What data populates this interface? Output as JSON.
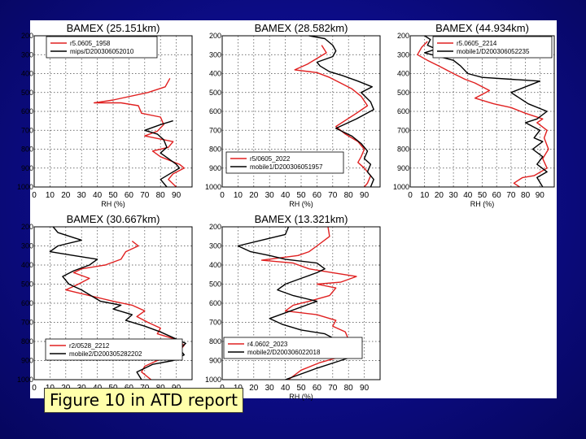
{
  "caption": "Figure 10 in ATD report",
  "colors": {
    "background": "#0c0c85",
    "panel": "#ffffff",
    "caption_bg": "#ffffaa",
    "series_red": "#e02020",
    "series_black": "#000000"
  },
  "chart_data": [
    {
      "type": "line",
      "title": "BAMEX (25.151km)",
      "xlabel": "RH (%)",
      "xticks": [
        0,
        10,
        20,
        30,
        40,
        50,
        60,
        70,
        80,
        90
      ],
      "yticks": [
        200,
        300,
        400,
        500,
        600,
        700,
        800,
        900,
        1000
      ],
      "xlim": [
        0,
        100
      ],
      "ylim": [
        1000,
        200
      ],
      "grid": true,
      "legend_position": "top",
      "series": [
        {
          "name": "r5.0605_1958",
          "color": "red",
          "points": [
            [
              86,
              425
            ],
            [
              83,
              470
            ],
            [
              72,
              500
            ],
            [
              50,
              540
            ],
            [
              38,
              555
            ],
            [
              55,
              555
            ],
            [
              66,
              570
            ],
            [
              68,
              610
            ],
            [
              80,
              630
            ],
            [
              82,
              670
            ],
            [
              78,
              705
            ],
            [
              70,
              730
            ],
            [
              88,
              760
            ],
            [
              85,
              790
            ],
            [
              75,
              810
            ],
            [
              80,
              840
            ],
            [
              92,
              880
            ],
            [
              95,
              900
            ],
            [
              88,
              930
            ],
            [
              85,
              960
            ],
            [
              90,
              1000
            ]
          ]
        },
        {
          "name": "mips/D200306052010",
          "color": "black",
          "points": [
            [
              88,
              650
            ],
            [
              80,
              670
            ],
            [
              70,
              700
            ],
            [
              78,
              720
            ],
            [
              82,
              750
            ],
            [
              84,
              790
            ],
            [
              80,
              820
            ],
            [
              85,
              850
            ],
            [
              90,
              880
            ],
            [
              92,
              900
            ],
            [
              86,
              930
            ],
            [
              80,
              960
            ],
            [
              84,
              1000
            ]
          ]
        }
      ]
    },
    {
      "type": "line",
      "title": "BAMEX (28.582km)",
      "xlabel": "RH (%)",
      "xticks": [
        0,
        10,
        20,
        30,
        40,
        50,
        60,
        70,
        80,
        90
      ],
      "yticks": [
        200,
        300,
        400,
        500,
        600,
        700,
        800,
        900,
        1000
      ],
      "xlim": [
        0,
        100
      ],
      "ylim": [
        1000,
        200
      ],
      "grid": true,
      "legend_position": "bottom-right",
      "series": [
        {
          "name": "r5/0605_2022",
          "color": "red",
          "points": [
            [
              63,
              250
            ],
            [
              66,
              290
            ],
            [
              60,
              320
            ],
            [
              54,
              350
            ],
            [
              46,
              380
            ],
            [
              60,
              395
            ],
            [
              68,
              420
            ],
            [
              75,
              450
            ],
            [
              82,
              480
            ],
            [
              88,
              520
            ],
            [
              92,
              570
            ],
            [
              85,
              610
            ],
            [
              72,
              680
            ],
            [
              78,
              720
            ],
            [
              86,
              760
            ],
            [
              90,
              800
            ],
            [
              88,
              840
            ],
            [
              86,
              870
            ],
            [
              90,
              900
            ],
            [
              94,
              940
            ],
            [
              92,
              980
            ],
            [
              90,
              1000
            ]
          ]
        },
        {
          "name": "mobile1/D200306051957",
          "color": "black",
          "points": [
            [
              55,
              200
            ],
            [
              65,
              215
            ],
            [
              70,
              250
            ],
            [
              72,
              280
            ],
            [
              70,
              310
            ],
            [
              60,
              340
            ],
            [
              62,
              360
            ],
            [
              68,
              390
            ],
            [
              76,
              410
            ],
            [
              86,
              440
            ],
            [
              95,
              470
            ],
            [
              88,
              500
            ],
            [
              94,
              550
            ],
            [
              96,
              590
            ],
            [
              85,
              640
            ],
            [
              72,
              690
            ],
            [
              82,
              730
            ],
            [
              88,
              770
            ],
            [
              92,
              810
            ],
            [
              90,
              850
            ],
            [
              94,
              880
            ],
            [
              92,
              920
            ],
            [
              96,
              960
            ],
            [
              94,
              1000
            ]
          ]
        }
      ]
    },
    {
      "type": "line",
      "title": "BAMEX (44.934km)",
      "xlabel": "RH (%)",
      "xticks": [
        0,
        10,
        20,
        30,
        40,
        50,
        60,
        70,
        80,
        90
      ],
      "yticks": [
        200,
        300,
        400,
        500,
        600,
        700,
        800,
        900,
        1000
      ],
      "xlim": [
        0,
        100
      ],
      "ylim": [
        1000,
        200
      ],
      "grid": true,
      "legend_position": "top",
      "series": [
        {
          "name": "r5.0605_2214",
          "color": "red",
          "points": [
            [
              12,
              230
            ],
            [
              8,
              260
            ],
            [
              5,
              300
            ],
            [
              12,
              330
            ],
            [
              20,
              360
            ],
            [
              30,
              400
            ],
            [
              38,
              430
            ],
            [
              45,
              450
            ],
            [
              55,
              490
            ],
            [
              45,
              530
            ],
            [
              58,
              560
            ],
            [
              70,
              580
            ],
            [
              80,
              610
            ],
            [
              92,
              640
            ],
            [
              88,
              660
            ],
            [
              95,
              700
            ],
            [
              93,
              740
            ],
            [
              96,
              800
            ],
            [
              92,
              850
            ],
            [
              95,
              900
            ],
            [
              86,
              940
            ],
            [
              78,
              950
            ],
            [
              72,
              980
            ],
            [
              76,
              1000
            ]
          ]
        },
        {
          "name": "mobile1/D200306052235",
          "color": "black",
          "points": [
            [
              10,
              200
            ],
            [
              14,
              220
            ],
            [
              12,
              250
            ],
            [
              18,
              270
            ],
            [
              10,
              290
            ],
            [
              20,
              310
            ],
            [
              30,
              330
            ],
            [
              35,
              360
            ],
            [
              40,
              400
            ],
            [
              50,
              420
            ],
            [
              70,
              430
            ],
            [
              90,
              440
            ],
            [
              80,
              470
            ],
            [
              70,
              500
            ],
            [
              82,
              560
            ],
            [
              95,
              600
            ],
            [
              88,
              640
            ],
            [
              80,
              660
            ],
            [
              90,
              700
            ],
            [
              86,
              740
            ],
            [
              92,
              760
            ],
            [
              85,
              800
            ],
            [
              92,
              840
            ],
            [
              88,
              880
            ],
            [
              95,
              920
            ],
            [
              88,
              950
            ],
            [
              92,
              1000
            ]
          ]
        }
      ]
    },
    {
      "type": "line",
      "title": "BAMEX (30.667km)",
      "xlabel": "",
      "xticks": [
        0,
        10,
        20,
        30,
        40,
        50,
        60,
        70,
        80,
        90
      ],
      "yticks": [
        200,
        300,
        400,
        500,
        600,
        700,
        800,
        900,
        1000
      ],
      "xlim": [
        0,
        100
      ],
      "ylim": [
        1000,
        200
      ],
      "grid": true,
      "legend_position": "bottom",
      "series": [
        {
          "name": "r2/0528_2212",
          "color": "red",
          "points": [
            [
              62,
              275
            ],
            [
              66,
              300
            ],
            [
              58,
              330
            ],
            [
              55,
              370
            ],
            [
              45,
              400
            ],
            [
              30,
              420
            ],
            [
              25,
              440
            ],
            [
              35,
              470
            ],
            [
              28,
              500
            ],
            [
              20,
              530
            ],
            [
              35,
              560
            ],
            [
              50,
              590
            ],
            [
              62,
              610
            ],
            [
              70,
              640
            ],
            [
              65,
              670
            ],
            [
              72,
              700
            ],
            [
              80,
              730
            ],
            [
              78,
              760
            ],
            [
              90,
              790
            ],
            [
              95,
              820
            ],
            [
              92,
              850
            ],
            [
              85,
              870
            ],
            [
              78,
              900
            ],
            [
              70,
              930
            ],
            [
              68,
              960
            ],
            [
              74,
              1000
            ]
          ]
        },
        {
          "name": "mobile2/D200305282202",
          "color": "black",
          "points": [
            [
              12,
              200
            ],
            [
              15,
              230
            ],
            [
              30,
              270
            ],
            [
              15,
              300
            ],
            [
              10,
              330
            ],
            [
              25,
              350
            ],
            [
              40,
              370
            ],
            [
              35,
              400
            ],
            [
              25,
              430
            ],
            [
              18,
              460
            ],
            [
              22,
              500
            ],
            [
              30,
              530
            ],
            [
              36,
              560
            ],
            [
              42,
              590
            ],
            [
              55,
              610
            ],
            [
              50,
              630
            ],
            [
              62,
              660
            ],
            [
              58,
              690
            ],
            [
              70,
              720
            ],
            [
              80,
              750
            ],
            [
              88,
              780
            ],
            [
              96,
              810
            ],
            [
              92,
              840
            ],
            [
              95,
              870
            ],
            [
              88,
              900
            ],
            [
              75,
              920
            ],
            [
              65,
              960
            ],
            [
              68,
              1000
            ]
          ]
        }
      ]
    },
    {
      "type": "line",
      "title": "BAMEX (13.321km)",
      "xlabel": "RH (%)",
      "xticks": [
        0,
        10,
        20,
        30,
        40,
        50,
        60,
        70,
        80,
        90
      ],
      "yticks": [
        200,
        300,
        400,
        500,
        600,
        700,
        800,
        900,
        1000
      ],
      "xlim": [
        0,
        100
      ],
      "ylim": [
        1000,
        200
      ],
      "grid": true,
      "legend_position": "bottom",
      "series": [
        {
          "name": "r4.0602_2023",
          "color": "red",
          "points": [
            [
              67,
              200
            ],
            [
              68,
              250
            ],
            [
              60,
              300
            ],
            [
              55,
              330
            ],
            [
              48,
              350
            ],
            [
              25,
              375
            ],
            [
              45,
              390
            ],
            [
              55,
              420
            ],
            [
              70,
              440
            ],
            [
              85,
              460
            ],
            [
              75,
              490
            ],
            [
              60,
              500
            ],
            [
              72,
              520
            ],
            [
              68,
              560
            ],
            [
              55,
              590
            ],
            [
              45,
              610
            ],
            [
              40,
              640
            ],
            [
              60,
              660
            ],
            [
              72,
              690
            ],
            [
              70,
              720
            ],
            [
              78,
              750
            ],
            [
              80,
              790
            ],
            [
              88,
              820
            ],
            [
              86,
              850
            ],
            [
              75,
              880
            ],
            [
              62,
              910
            ],
            [
              50,
              950
            ],
            [
              42,
              1000
            ]
          ]
        },
        {
          "name": "mobile2/D200306022018",
          "color": "black",
          "points": [
            [
              42,
              200
            ],
            [
              40,
              240
            ],
            [
              25,
              270
            ],
            [
              10,
              300
            ],
            [
              18,
              330
            ],
            [
              30,
              350
            ],
            [
              40,
              370
            ],
            [
              60,
              390
            ],
            [
              65,
              420
            ],
            [
              60,
              440
            ],
            [
              50,
              470
            ],
            [
              40,
              500
            ],
            [
              35,
              530
            ],
            [
              45,
              560
            ],
            [
              60,
              590
            ],
            [
              50,
              620
            ],
            [
              40,
              650
            ],
            [
              30,
              680
            ],
            [
              38,
              710
            ],
            [
              50,
              740
            ],
            [
              65,
              760
            ],
            [
              72,
              790
            ],
            [
              78,
              820
            ],
            [
              85,
              850
            ],
            [
              86,
              870
            ],
            [
              75,
              900
            ],
            [
              60,
              940
            ],
            [
              50,
              970
            ],
            [
              40,
              1000
            ]
          ]
        }
      ]
    }
  ]
}
